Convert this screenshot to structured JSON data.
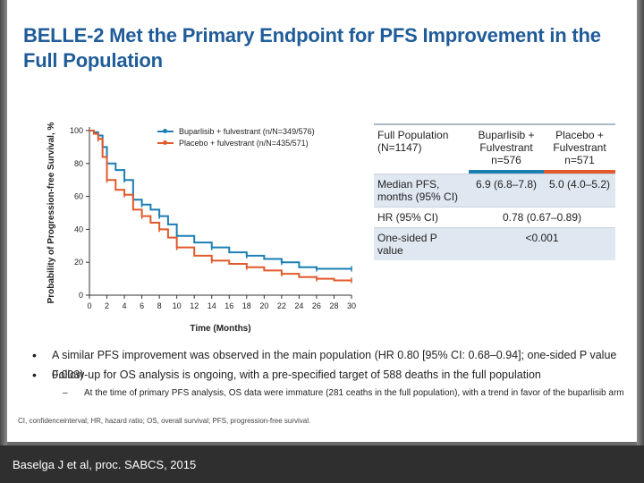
{
  "slide": {
    "title": "BELLE-2 Met the Primary Endpoint for PFS Improvement in the Full Population",
    "footnote": "CI, confidenceinterval; HR, hazard ratio; OS, overall survival; PFS, progression-free survival.",
    "citation": "Baselga J et al, proc. SABCS, 2015",
    "bullets": [
      "A similar PFS improvement was observed in the main population (HR 0.80 [95% CI: 0.68–0.94]; one-sided P value 0.003)",
      "Follow-up for OS analysis is ongoing, with a pre-specified target of 588 deaths in the full population"
    ],
    "sub_bullet": "At the time of primary PFS analysis, OS data were immature (281 ceaths in the full population), with a trend in favor of the buparlisib arm"
  },
  "table": {
    "header": {
      "label": "Full Population (N=1147)",
      "col1": "Buparlisib + Fulvestrant n=576",
      "col2": "Placebo + Fulvestrant n=571"
    },
    "rows": [
      {
        "label": "Median PFS, months (95% CI)",
        "col1": "6.9 (6.8–7.8)",
        "col2": "5.0 (4.0–5.2)"
      },
      {
        "label": "HR (95% CI)",
        "merged": "0.78 (0.67–0.89)"
      },
      {
        "label": "One-sided P value",
        "merged": "<0.001"
      }
    ]
  },
  "chart_data": {
    "type": "line",
    "title": "",
    "xlabel": "Time (Months)",
    "ylabel": "Probability of Progression-free Survival, %",
    "xlim": [
      0,
      30
    ],
    "ylim": [
      0,
      100
    ],
    "xticks": [
      0,
      2,
      4,
      6,
      8,
      10,
      12,
      14,
      16,
      18,
      20,
      22,
      24,
      26,
      28,
      30
    ],
    "yticks": [
      0,
      20,
      40,
      60,
      80,
      100
    ],
    "series": [
      {
        "name": "Buparlisib + fulvestrant (n/N=349/576)",
        "color": "#1b7fb3",
        "x": [
          0,
          0.5,
          1,
          1.5,
          2,
          3,
          4,
          5,
          6,
          7,
          8,
          9,
          10,
          12,
          14,
          16,
          18,
          20,
          22,
          24,
          26,
          28,
          30
        ],
        "y": [
          100,
          99,
          97,
          90,
          80,
          76,
          70,
          58,
          55,
          52,
          48,
          43,
          36,
          32,
          29,
          26,
          24,
          22,
          20,
          17,
          16,
          16,
          16
        ]
      },
      {
        "name": "Placebo + fulvestrant (n/N=435/571)",
        "color": "#e05a2b",
        "x": [
          0,
          0.5,
          1,
          1.5,
          2,
          3,
          4,
          5,
          6,
          7,
          8,
          9,
          10,
          12,
          14,
          16,
          18,
          20,
          22,
          24,
          26,
          28,
          30
        ],
        "y": [
          100,
          98,
          95,
          84,
          70,
          64,
          61,
          52,
          48,
          44,
          40,
          35,
          29,
          24,
          21,
          19,
          17,
          15,
          13,
          11,
          10,
          9,
          9
        ]
      }
    ]
  }
}
